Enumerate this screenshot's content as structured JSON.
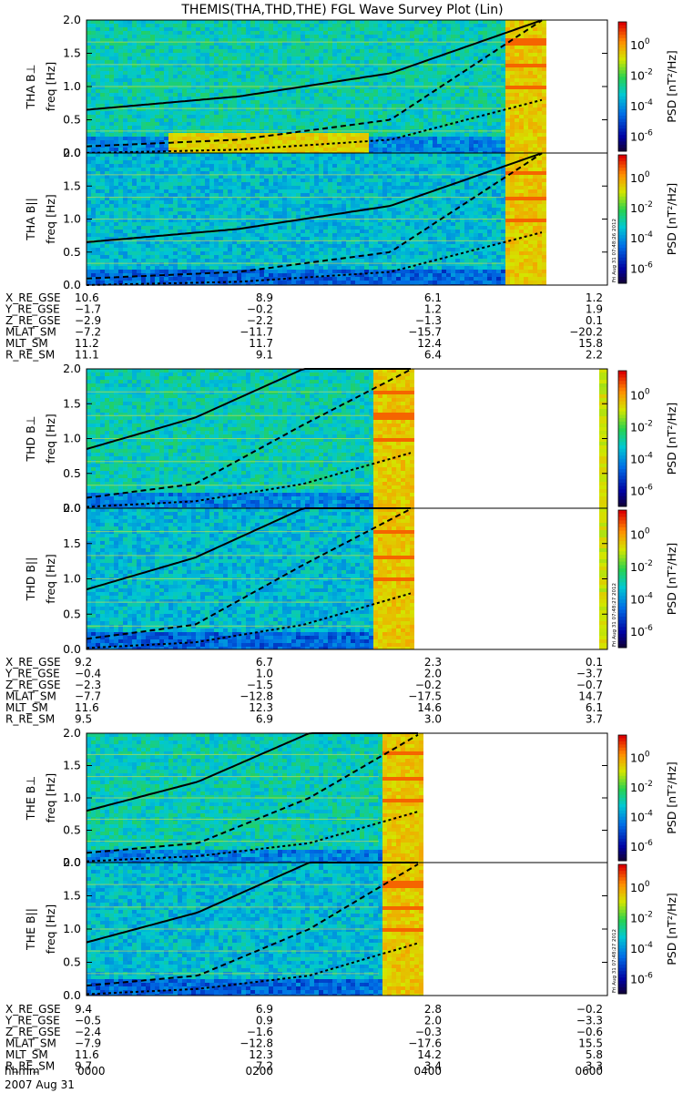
{
  "chart_data": {
    "type": "heatmap",
    "title": "THEMIS(THA,THD,THE) FGL Wave Survey Plot (Lin)",
    "date_label": "2007 Aug 31",
    "time_axis_label": "hhmm",
    "time_ticks": [
      "0000",
      "0200",
      "0400",
      "0600"
    ],
    "time_range_hours": [
      0,
      6
    ],
    "ylabel": "freq [Hz]",
    "ylim": [
      0,
      2.0
    ],
    "yticks": [
      "0.0",
      "0.5",
      "1.0",
      "1.5",
      "2.0"
    ],
    "colorbar_label": "PSD [nT²/Hz]",
    "colorbar_ticks": [
      {
        "base": "10",
        "exp": "0"
      },
      {
        "base": "10",
        "exp": "-2"
      },
      {
        "base": "10",
        "exp": "-4"
      },
      {
        "base": "10",
        "exp": "-6"
      }
    ],
    "colorbar_range_log10": [
      -7,
      1.5
    ],
    "probes": [
      {
        "name": "THA",
        "panels": [
          {
            "label": "THA B⊥",
            "stamp": "Fri Aug 31 07:48:26 2012"
          },
          {
            "label": "THA B||",
            "stamp": "Fri Aug 31 07:48:26 2012"
          }
        ],
        "data_interval_hours": [
          0,
          5.25
        ],
        "lines": {
          "gyro_solid": [
            0.65,
            0.85,
            1.2,
            2.0
          ],
          "half_dashed": [
            0.1,
            0.2,
            0.5,
            2.0
          ],
          "tenth_dotdash": [
            0.0,
            0.05,
            0.2,
            0.8
          ]
        },
        "ephemeris": {
          "labels": [
            "X_RE_GSE",
            "Y_RE_GSE",
            "Z_RE_GSE",
            "MLAT_SM",
            "MLT_SM",
            "R_RE_SM"
          ],
          "columns": [
            [
              "10.6",
              "-1.7",
              "-2.9",
              "-7.2",
              "11.2",
              "11.1"
            ],
            [
              "8.9",
              "-0.2",
              "-2.2",
              "-11.7",
              "11.7",
              "9.1"
            ],
            [
              "6.1",
              "1.2",
              "-1.3",
              "-15.7",
              "12.4",
              "6.4"
            ],
            [
              "1.2",
              "1.9",
              "0.1",
              "-20.2",
              "15.8",
              "2.2"
            ]
          ]
        }
      },
      {
        "name": "THD",
        "panels": [
          {
            "label": "THD B⊥",
            "stamp": "Fri Aug 31 07:48:27 2012"
          },
          {
            "label": "THD B||",
            "stamp": "Fri Aug 31 07:48:27 2012"
          }
        ],
        "data_interval_hours": [
          0,
          3.75
        ],
        "lines": {
          "gyro_solid": [
            0.85,
            1.3,
            2.0,
            2.0
          ],
          "half_dashed": [
            0.15,
            0.35,
            1.2,
            2.0
          ],
          "tenth_dotdash": [
            0.02,
            0.1,
            0.35,
            0.8
          ]
        },
        "ephemeris": {
          "labels": [
            "X_RE_GSE",
            "Y_RE_GSE",
            "Z_RE_GSE",
            "MLAT_SM",
            "MLT_SM",
            "R_RE_SM"
          ],
          "columns": [
            [
              "9.2",
              "-0.4",
              "-2.3",
              "-7.7",
              "11.6",
              "9.5"
            ],
            [
              "6.7",
              "1.0",
              "-1.5",
              "-12.8",
              "12.3",
              "6.9"
            ],
            [
              "2.3",
              "2.0",
              "-0.2",
              "-17.5",
              "14.6",
              "3.0"
            ],
            [
              "0.1",
              "-3.7",
              "-0.7",
              "14.7",
              "6.1",
              "3.7"
            ]
          ]
        }
      },
      {
        "name": "THE",
        "panels": [
          {
            "label": "THE B⊥",
            "stamp": "Fri Aug 31 07:48:27 2012"
          },
          {
            "label": "THE B||",
            "stamp": "Fri Aug 31 07:48:27 2012"
          }
        ],
        "data_interval_hours": [
          0,
          3.85
        ],
        "lines": {
          "gyro_solid": [
            0.8,
            1.25,
            2.0,
            2.0
          ],
          "half_dashed": [
            0.15,
            0.3,
            1.0,
            2.0
          ],
          "tenth_dotdash": [
            0.02,
            0.1,
            0.3,
            0.8
          ]
        },
        "ephemeris": {
          "labels": [
            "X_RE_GSE",
            "Y_RE_GSE",
            "Z_RE_GSE",
            "MLAT_SM",
            "MLT_SM",
            "R_RE_SM"
          ],
          "columns": [
            [
              "9.4",
              "-0.5",
              "-2.4",
              "-7.9",
              "11.6",
              "9.7"
            ],
            [
              "6.9",
              "0.9",
              "-1.6",
              "-12.8",
              "12.3",
              "7.2"
            ],
            [
              "2.8",
              "2.0",
              "-0.3",
              "-17.6",
              "14.2",
              "3.4"
            ],
            [
              "-0.2",
              "-3.3",
              "-0.6",
              "15.5",
              "5.8",
              "3.3"
            ]
          ]
        }
      }
    ]
  }
}
